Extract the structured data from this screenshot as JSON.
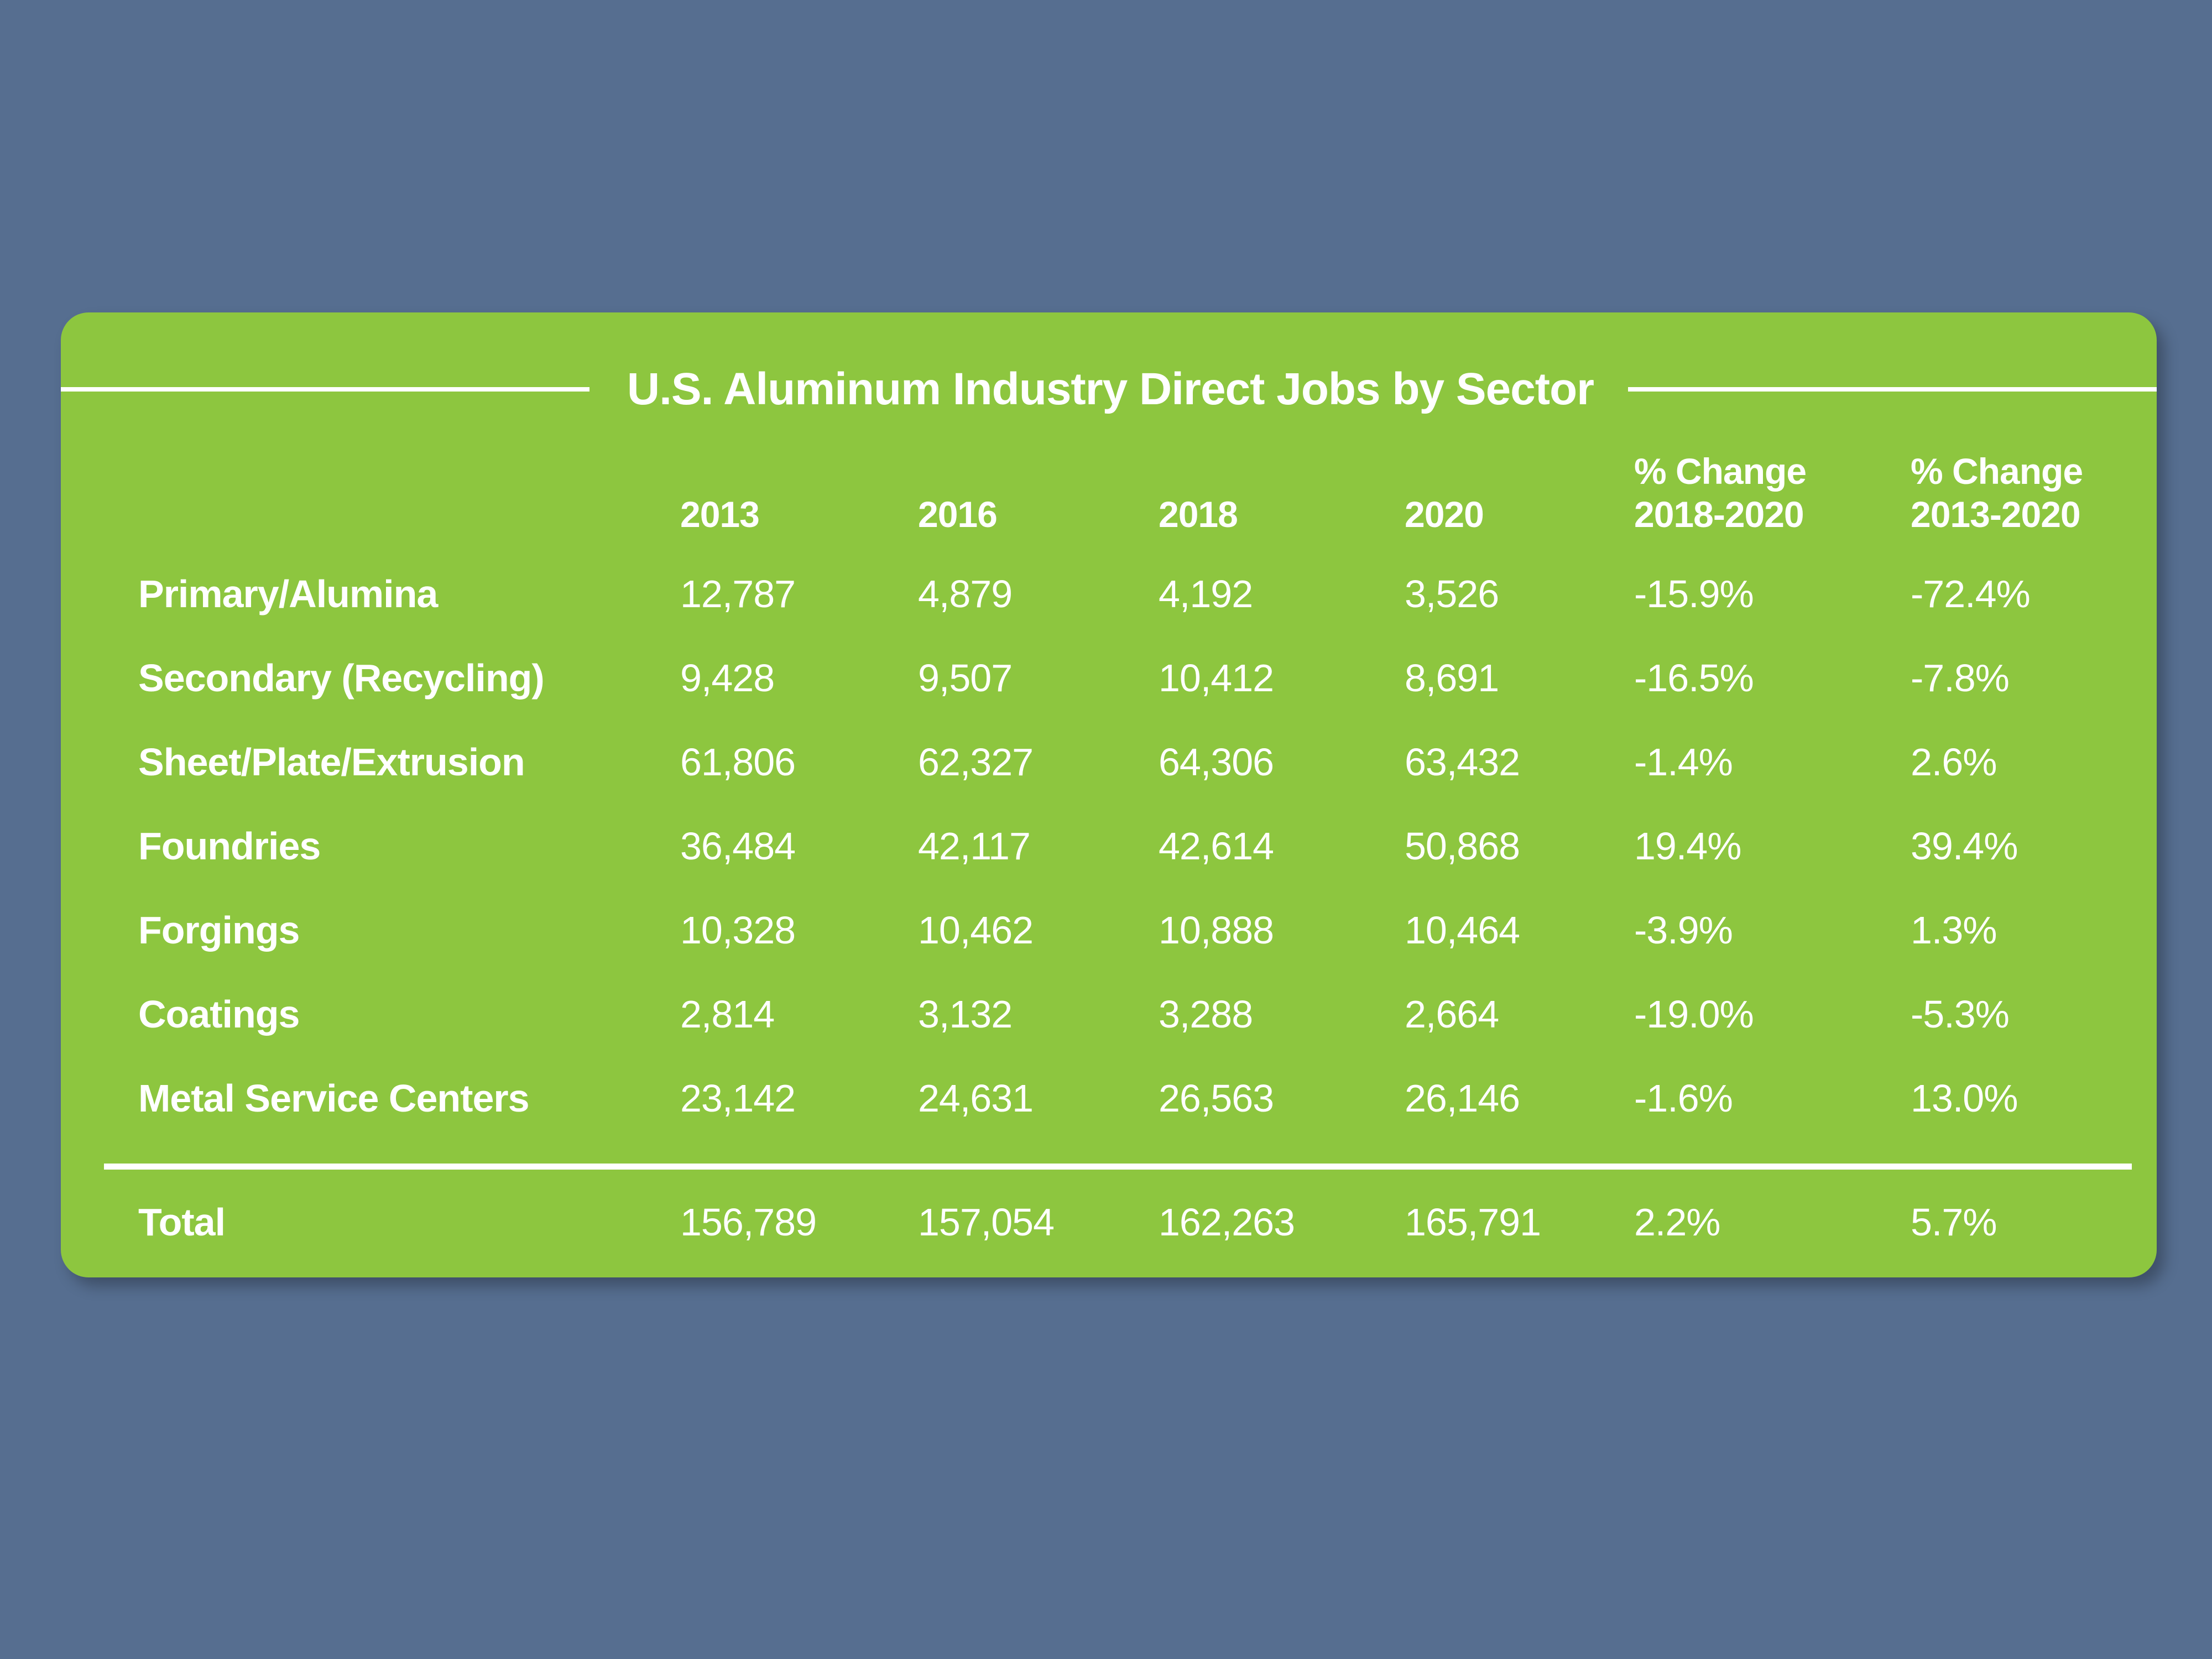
{
  "title": "U.S. Aluminum Industry Direct Jobs by Sector",
  "colors": {
    "background": "#566E90",
    "card": "#8DC63F",
    "text": "#FFFFFF"
  },
  "table": {
    "header": {
      "y2013": "2013",
      "y2016": "2016",
      "y2018": "2018",
      "y2020": "2020",
      "pct1_line1": "% Change",
      "pct1_line2": "2018-2020",
      "pct2_line1": "% Change",
      "pct2_line2": "2013-2020"
    },
    "rows": [
      {
        "sector": "Primary/Alumina",
        "values": [
          "12,787",
          "4,879",
          "4,192",
          "3,526",
          "-15.9%",
          "-72.4%"
        ]
      },
      {
        "sector": "Secondary (Recycling)",
        "values": [
          "9,428",
          "9,507",
          "10,412",
          "8,691",
          "-16.5%",
          "-7.8%"
        ]
      },
      {
        "sector": "Sheet/Plate/Extrusion",
        "values": [
          "61,806",
          "62,327",
          "64,306",
          "63,432",
          "-1.4%",
          "2.6%"
        ]
      },
      {
        "sector": "Foundries",
        "values": [
          "36,484",
          "42,117",
          "42,614",
          "50,868",
          "19.4%",
          "39.4%"
        ]
      },
      {
        "sector": "Forgings",
        "values": [
          "10,328",
          "10,462",
          "10,888",
          "10,464",
          "-3.9%",
          "1.3%"
        ]
      },
      {
        "sector": "Coatings",
        "values": [
          "2,814",
          "3,132",
          "3,288",
          "2,664",
          "-19.0%",
          "-5.3%"
        ]
      },
      {
        "sector": "Metal Service Centers",
        "values": [
          "23,142",
          "24,631",
          "26,563",
          "26,146",
          "-1.6%",
          "13.0%"
        ]
      }
    ],
    "total": {
      "sector": "Total",
      "values": [
        "156,789",
        "157,054",
        "162,263",
        "165,791",
        "2.2%",
        "5.7%"
      ]
    }
  },
  "chart_data": {
    "type": "table",
    "title": "U.S. Aluminum Industry Direct Jobs by Sector",
    "categories": [
      "Primary/Alumina",
      "Secondary (Recycling)",
      "Sheet/Plate/Extrusion",
      "Foundries",
      "Forgings",
      "Coatings",
      "Metal Service Centers",
      "Total"
    ],
    "columns": [
      "2013",
      "2016",
      "2018",
      "2020",
      "% Change 2018-2020",
      "% Change 2013-2020"
    ],
    "series": [
      {
        "name": "2013",
        "values": [
          12787,
          9428,
          61806,
          36484,
          10328,
          2814,
          23142,
          156789
        ]
      },
      {
        "name": "2016",
        "values": [
          4879,
          9507,
          62327,
          42117,
          10462,
          3132,
          24631,
          157054
        ]
      },
      {
        "name": "2018",
        "values": [
          4192,
          10412,
          64306,
          42614,
          10888,
          3288,
          26563,
          162263
        ]
      },
      {
        "name": "2020",
        "values": [
          3526,
          8691,
          63432,
          50868,
          10464,
          2664,
          26146,
          165791
        ]
      },
      {
        "name": "% Change 2018-2020",
        "values": [
          -15.9,
          -16.5,
          -1.4,
          19.4,
          -3.9,
          -19.0,
          -1.6,
          2.2
        ]
      },
      {
        "name": "% Change 2013-2020",
        "values": [
          -72.4,
          -7.8,
          2.6,
          39.4,
          1.3,
          -5.3,
          13.0,
          5.7
        ]
      }
    ]
  }
}
